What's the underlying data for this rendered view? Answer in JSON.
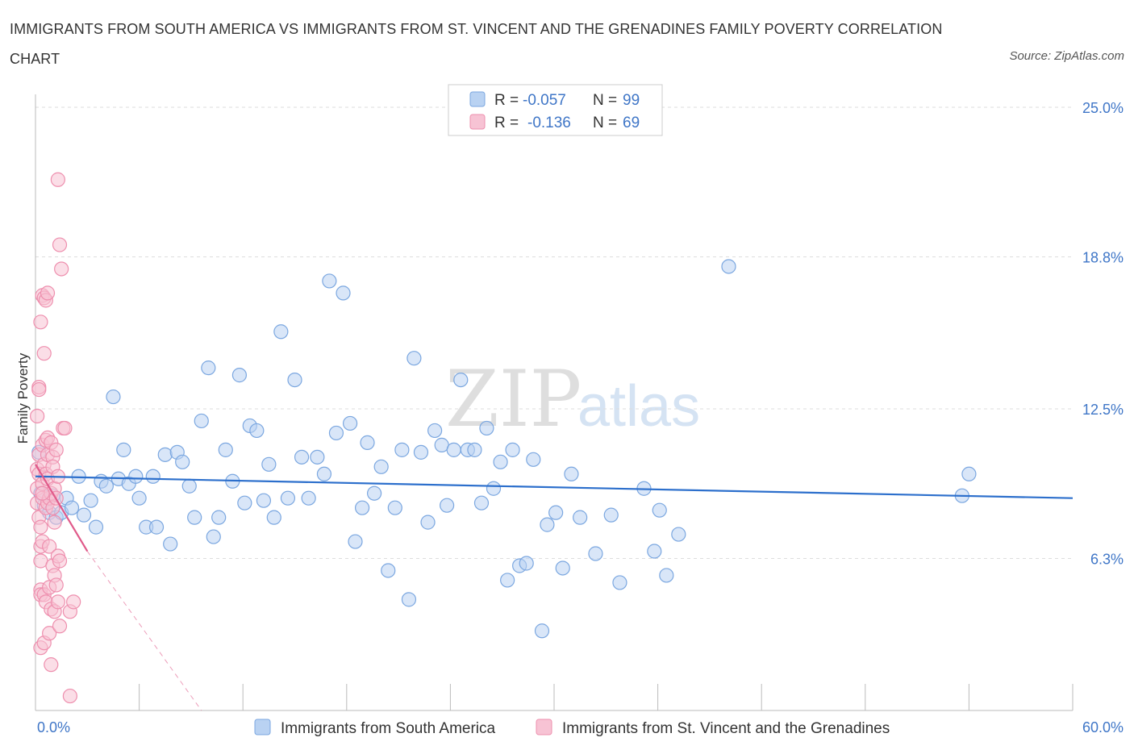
{
  "chart_data": {
    "type": "scatter",
    "title": "IMMIGRANTS FROM SOUTH AMERICA VS IMMIGRANTS FROM ST. VINCENT AND THE GRENADINES FAMILY POVERTY CORRELATION CHART",
    "source": "Source: ZipAtlas.com",
    "ylabel": "Family Poverty",
    "xlim": [
      0,
      60
    ],
    "ylim": [
      0,
      25
    ],
    "y_tick_labels": [
      "25.0%",
      "18.8%",
      "12.5%",
      "6.3%"
    ],
    "y_tick_values": [
      25.0,
      18.8,
      12.5,
      6.3
    ],
    "x_tick_labels": [
      "0.0%",
      "60.0%"
    ],
    "watermark": {
      "zip": "ZIP",
      "atlas": "atlas"
    },
    "legend": {
      "rows": [
        {
          "r_label": "R =",
          "r_value": "-0.057",
          "n_label": "N =",
          "n_value": "99"
        },
        {
          "r_label": "R =",
          "r_value": "-0.136",
          "n_label": "N =",
          "n_value": "69"
        }
      ]
    },
    "series": [
      {
        "name": "Immigrants from South America",
        "color": "#7ba7e0",
        "fill": "#b9d2f2",
        "trend_color": "#2c6fcc",
        "trend": {
          "x0": 0,
          "y0": 9.7,
          "x1": 60,
          "y1": 8.8
        },
        "points": [
          [
            0.3,
            9.0
          ],
          [
            0.5,
            8.5
          ],
          [
            0.8,
            8.2
          ],
          [
            1.0,
            8.9
          ],
          [
            1.2,
            8.0
          ],
          [
            1.5,
            8.2
          ],
          [
            1.8,
            8.8
          ],
          [
            2.1,
            8.4
          ],
          [
            2.5,
            9.7
          ],
          [
            2.8,
            8.1
          ],
          [
            3.2,
            8.7
          ],
          [
            3.5,
            7.6
          ],
          [
            3.8,
            9.5
          ],
          [
            4.1,
            9.3
          ],
          [
            4.5,
            13.0
          ],
          [
            4.8,
            9.6
          ],
          [
            5.1,
            10.8
          ],
          [
            5.4,
            9.4
          ],
          [
            5.8,
            9.7
          ],
          [
            6.0,
            8.8
          ],
          [
            6.4,
            7.6
          ],
          [
            6.8,
            9.7
          ],
          [
            7.0,
            7.6
          ],
          [
            7.5,
            10.6
          ],
          [
            7.8,
            6.9
          ],
          [
            8.2,
            10.7
          ],
          [
            8.5,
            10.3
          ],
          [
            8.9,
            9.3
          ],
          [
            9.2,
            8.0
          ],
          [
            9.6,
            12.0
          ],
          [
            10.0,
            14.2
          ],
          [
            10.3,
            7.2
          ],
          [
            10.6,
            8.0
          ],
          [
            11.0,
            10.8
          ],
          [
            11.4,
            9.5
          ],
          [
            11.8,
            13.9
          ],
          [
            12.1,
            8.6
          ],
          [
            12.4,
            11.8
          ],
          [
            12.8,
            11.6
          ],
          [
            13.2,
            8.7
          ],
          [
            13.5,
            10.2
          ],
          [
            13.8,
            8.0
          ],
          [
            14.2,
            15.7
          ],
          [
            14.6,
            8.8
          ],
          [
            15.0,
            13.7
          ],
          [
            15.4,
            10.5
          ],
          [
            15.8,
            8.8
          ],
          [
            16.3,
            10.5
          ],
          [
            16.7,
            9.8
          ],
          [
            17.0,
            17.8
          ],
          [
            17.4,
            11.5
          ],
          [
            17.8,
            17.3
          ],
          [
            18.2,
            11.9
          ],
          [
            18.5,
            7.0
          ],
          [
            18.9,
            8.4
          ],
          [
            19.2,
            11.1
          ],
          [
            19.6,
            9.0
          ],
          [
            20.0,
            10.1
          ],
          [
            20.4,
            5.8
          ],
          [
            20.8,
            8.4
          ],
          [
            21.2,
            10.8
          ],
          [
            21.6,
            4.6
          ],
          [
            21.9,
            14.6
          ],
          [
            22.3,
            10.7
          ],
          [
            22.7,
            7.8
          ],
          [
            23.1,
            11.6
          ],
          [
            23.5,
            11.0
          ],
          [
            23.8,
            8.5
          ],
          [
            24.2,
            10.8
          ],
          [
            24.6,
            13.7
          ],
          [
            25.0,
            10.8
          ],
          [
            25.4,
            10.8
          ],
          [
            25.8,
            8.6
          ],
          [
            26.1,
            11.7
          ],
          [
            26.5,
            9.2
          ],
          [
            26.9,
            10.3
          ],
          [
            27.3,
            5.4
          ],
          [
            27.6,
            10.8
          ],
          [
            28.0,
            6.0
          ],
          [
            28.4,
            6.1
          ],
          [
            28.8,
            10.4
          ],
          [
            29.3,
            3.3
          ],
          [
            29.6,
            7.7
          ],
          [
            30.1,
            8.2
          ],
          [
            30.5,
            5.9
          ],
          [
            31.0,
            9.8
          ],
          [
            31.5,
            8.0
          ],
          [
            32.4,
            6.5
          ],
          [
            33.3,
            8.1
          ],
          [
            33.8,
            5.3
          ],
          [
            35.2,
            9.2
          ],
          [
            35.8,
            6.6
          ],
          [
            36.1,
            8.3
          ],
          [
            36.5,
            5.6
          ],
          [
            37.2,
            7.3
          ],
          [
            40.1,
            18.4
          ],
          [
            53.6,
            8.9
          ],
          [
            54.0,
            9.8
          ],
          [
            0.2,
            10.7
          ]
        ]
      },
      {
        "name": "Immigrants from St. Vincent and the Grenadines",
        "color": "#ee8fae",
        "fill": "#f7c3d4",
        "trend_color": "#e05a8a",
        "trend": {
          "x0": 0,
          "y0": 10.2,
          "x1": 3.0,
          "y1": 6.6
        },
        "trend_ext": {
          "x0": 3.0,
          "y0": 6.6,
          "x1": 9.6,
          "y1": 0
        },
        "points": [
          [
            0.1,
            10.0
          ],
          [
            0.1,
            9.2
          ],
          [
            0.1,
            8.6
          ],
          [
            0.1,
            12.2
          ],
          [
            0.2,
            13.4
          ],
          [
            0.2,
            13.3
          ],
          [
            0.2,
            10.6
          ],
          [
            0.2,
            9.8
          ],
          [
            0.2,
            8.0
          ],
          [
            0.3,
            7.6
          ],
          [
            0.3,
            6.8
          ],
          [
            0.3,
            6.2
          ],
          [
            0.3,
            5.0
          ],
          [
            0.3,
            4.8
          ],
          [
            0.3,
            2.6
          ],
          [
            0.3,
            16.1
          ],
          [
            0.4,
            17.2
          ],
          [
            0.4,
            11.0
          ],
          [
            0.4,
            9.4
          ],
          [
            0.4,
            8.8
          ],
          [
            0.4,
            7.0
          ],
          [
            0.5,
            17.1
          ],
          [
            0.5,
            10.2
          ],
          [
            0.5,
            4.8
          ],
          [
            0.5,
            2.8
          ],
          [
            0.5,
            14.8
          ],
          [
            0.6,
            17.0
          ],
          [
            0.6,
            11.2
          ],
          [
            0.6,
            9.8
          ],
          [
            0.6,
            8.4
          ],
          [
            0.6,
            4.5
          ],
          [
            0.7,
            17.3
          ],
          [
            0.7,
            11.3
          ],
          [
            0.7,
            10.6
          ],
          [
            0.7,
            9.6
          ],
          [
            0.7,
            8.6
          ],
          [
            0.8,
            8.8
          ],
          [
            0.8,
            6.8
          ],
          [
            0.8,
            5.1
          ],
          [
            0.8,
            3.2
          ],
          [
            0.9,
            11.1
          ],
          [
            0.9,
            9.0
          ],
          [
            0.9,
            4.2
          ],
          [
            0.9,
            1.9
          ],
          [
            1.0,
            10.5
          ],
          [
            1.0,
            10.1
          ],
          [
            1.0,
            8.4
          ],
          [
            1.0,
            6.0
          ],
          [
            1.1,
            9.2
          ],
          [
            1.1,
            7.8
          ],
          [
            1.1,
            5.6
          ],
          [
            1.1,
            4.1
          ],
          [
            1.2,
            10.8
          ],
          [
            1.2,
            8.8
          ],
          [
            1.2,
            5.2
          ],
          [
            1.3,
            22.0
          ],
          [
            1.3,
            9.7
          ],
          [
            1.3,
            6.4
          ],
          [
            1.3,
            4.5
          ],
          [
            1.4,
            19.3
          ],
          [
            1.4,
            6.2
          ],
          [
            1.4,
            3.5
          ],
          [
            1.5,
            18.3
          ],
          [
            1.6,
            11.7
          ],
          [
            1.7,
            11.7
          ],
          [
            2.0,
            0.6
          ],
          [
            2.0,
            4.1
          ],
          [
            2.2,
            4.5
          ],
          [
            0.4,
            9.0
          ]
        ]
      }
    ],
    "bottom_legend": [
      "Immigrants from South America",
      "Immigrants from St. Vincent and the Grenadines"
    ]
  }
}
